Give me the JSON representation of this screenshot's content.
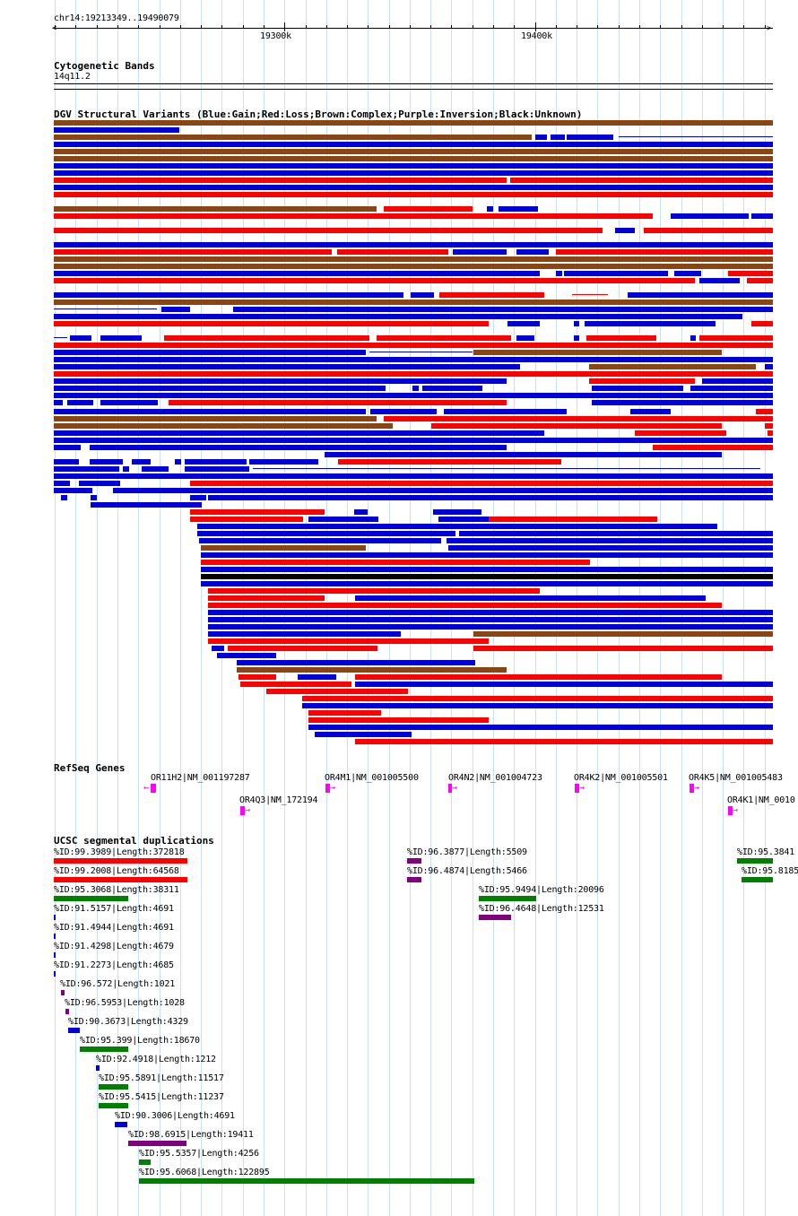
{
  "region": "chr14:19213349..19490079",
  "ruler": {
    "ticks": [
      {
        "label": "19300k",
        "pos": 19300000
      },
      {
        "label": "19400k",
        "pos": 19400000
      }
    ]
  },
  "cytoband": {
    "title": "Cytogenetic Bands",
    "band": "14q11.2"
  },
  "dgv": {
    "title": "DGV Structural Variants (Blue:Gain;Red:Loss;Brown:Complex;Purple:Inversion;Black:Unknown)",
    "colors": {
      "gain": "#0000dd",
      "loss": "#ff0000",
      "complex": "#8b4513",
      "inversion": "#800080",
      "unknown": "#000000"
    }
  },
  "refseq": {
    "title": "RefSeq Genes",
    "genes": [
      {
        "label": "OR11H2|NM_001197287",
        "strand": "-"
      },
      {
        "label": "OR4Q3|NM_172194",
        "strand": "+"
      },
      {
        "label": "OR4M1|NM_001005500",
        "strand": "+"
      },
      {
        "label": "OR4N2|NM_001004723",
        "strand": "+"
      },
      {
        "label": "OR4K2|NM_001005501",
        "strand": "+"
      },
      {
        "label": "OR4K5|NM_001005483",
        "strand": "+"
      },
      {
        "label": "OR4K1|NM_0010",
        "strand": "+"
      }
    ]
  },
  "segdups": {
    "title": "UCSC segmental duplications",
    "colors": {
      "red": "#ff0000",
      "green": "#008000",
      "purple": "#800080",
      "blue": "#0000dd"
    },
    "items": [
      {
        "label": "%ID:99.3989|Length:372818",
        "color": "red"
      },
      {
        "label": "%ID:99.2008|Length:64568",
        "color": "red"
      },
      {
        "label": "%ID:95.3068|Length:38311",
        "color": "green"
      },
      {
        "label": "%ID:91.5157|Length:4691",
        "color": "blue"
      },
      {
        "label": "%ID:91.4944|Length:4691",
        "color": "blue"
      },
      {
        "label": "%ID:91.4298|Length:4679",
        "color": "blue"
      },
      {
        "label": "%ID:91.2273|Length:4685",
        "color": "blue"
      },
      {
        "label": "%ID:96.572|Length:1021",
        "color": "purple"
      },
      {
        "label": "%ID:96.5953|Length:1028",
        "color": "purple"
      },
      {
        "label": "%ID:90.3673|Length:4329",
        "color": "blue"
      },
      {
        "label": "%ID:95.399|Length:18670",
        "color": "green"
      },
      {
        "label": "%ID:92.4918|Length:1212",
        "color": "blue"
      },
      {
        "label": "%ID:95.5891|Length:11517",
        "color": "green"
      },
      {
        "label": "%ID:95.5415|Length:11237",
        "color": "green"
      },
      {
        "label": "%ID:90.3006|Length:4691",
        "color": "blue"
      },
      {
        "label": "%ID:98.6915|Length:19411",
        "color": "purple"
      },
      {
        "label": "%ID:95.5357|Length:4256",
        "color": "green"
      },
      {
        "label": "%ID:95.6068|Length:122895",
        "color": "green"
      },
      {
        "label": "%ID:96.3877|Length:5509",
        "color": "purple"
      },
      {
        "label": "%ID:96.4874|Length:5466",
        "color": "purple"
      },
      {
        "label": "%ID:95.9494|Length:20096",
        "color": "green"
      },
      {
        "label": "%ID:96.4648|Length:12531",
        "color": "purple"
      },
      {
        "label": "%ID:95.3841",
        "color": "green"
      },
      {
        "label": "%ID:95.8185",
        "color": "green"
      }
    ]
  }
}
